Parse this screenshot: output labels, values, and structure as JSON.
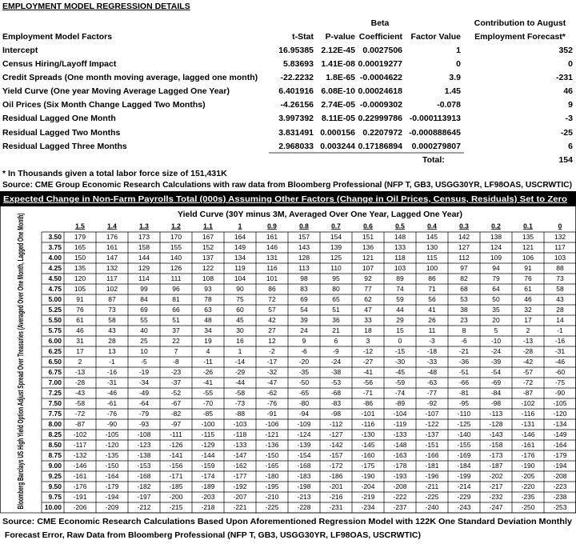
{
  "regression": {
    "title": "EMPLOYMENT MODEL REGRESSION DETAILS",
    "group_headers": {
      "beta": "Beta",
      "contribution": "Contribution to August"
    },
    "columns": [
      "Employment Model Factors",
      "t-Stat",
      "P-value",
      "Coefficient",
      "Factor Value",
      "Employment Forecast*"
    ],
    "rows": [
      [
        "Intercept",
        16.95385,
        "2.12E-45",
        0.0027506,
        1,
        352
      ],
      [
        "Census Hiring/Layoff Impact",
        5.83693,
        "1.41E-08",
        0.00019277,
        0,
        0
      ],
      [
        "Credit Spreads (One month moving average, lagged one month)",
        -22.2232,
        "1.8E-65",
        -0.0004622,
        3.9,
        -231
      ],
      [
        "Yield Curve (One year Moving Average Lagged One Year)",
        6.401916,
        "6.08E-10",
        0.00024618,
        1.45,
        46
      ],
      [
        "Oil Prices (Six Month Change Lagged Two Months)",
        -4.26156,
        "2.74E-05",
        -0.0009302,
        -0.078,
        9
      ],
      [
        "Residual Lagged One Month",
        3.997392,
        "8.11E-05",
        0.22999786,
        -0.000113913,
        -3
      ],
      [
        "Residual Lagged Two Months",
        3.831491,
        0.000156,
        0.2207972,
        -0.000888645,
        -25
      ],
      [
        "Residual Lagged Three Months",
        2.968033,
        0.003244,
        0.17186894,
        0.000279807,
        6
      ]
    ],
    "total_label": "Total:",
    "total": 154,
    "note": "* In Thousands given a total labor force size of 151,431K",
    "source": "Source: CME Group Economic Research Calculations with raw data from Bloomberg Professional (NFP T, GB3, USGG30YR, LF98OAS, USCRWTIC)"
  },
  "sensitivity": {
    "title": "Expected Change in Non-Farm Payrolls Total (000s) Assuming Other Factors (Change in Oil Prices, Census, Residuals) Set to Zero",
    "column_title": "Yield Curve (30Y minus 3M, Averaged Over One Year, Lagged One Year)",
    "row_title": "Bloomberg Barclays US High Yield Option Adjust Spread Over Treasuries (Averaged Over One Month, Lagged One Month)",
    "columns": [
      1.5,
      1.4,
      1.3,
      1.2,
      1.1,
      1,
      0.9,
      0.8,
      0.7,
      0.6,
      0.5,
      0.4,
      0.3,
      0.2,
      0.1,
      0
    ],
    "row_labels": [
      "3.50",
      "3.75",
      "4.00",
      "4.25",
      "4.50",
      "4.75",
      "5.00",
      "5.25",
      "5.50",
      "5.75",
      "6.00",
      "6.25",
      "6.50",
      "6.75",
      "7.00",
      "7.25",
      "7.50",
      "7.75",
      "8.00",
      "8.25",
      "8.50",
      "8.75",
      "9.00",
      "9.25",
      "9.50",
      "9.75",
      "10.00"
    ],
    "rows": [
      [
        179,
        176,
        173,
        170,
        167,
        164,
        161,
        157,
        154,
        151,
        148,
        145,
        142,
        138,
        135,
        132
      ],
      [
        165,
        161,
        158,
        155,
        152,
        149,
        146,
        143,
        139,
        136,
        133,
        130,
        127,
        124,
        121,
        117
      ],
      [
        150,
        147,
        144,
        140,
        137,
        134,
        131,
        128,
        125,
        121,
        118,
        115,
        112,
        109,
        106,
        103
      ],
      [
        135,
        132,
        129,
        126,
        122,
        119,
        116,
        113,
        110,
        107,
        103,
        100,
        97,
        94,
        91,
        88
      ],
      [
        120,
        117,
        114,
        111,
        108,
        104,
        101,
        98,
        95,
        92,
        89,
        86,
        82,
        79,
        76,
        73
      ],
      [
        105,
        102,
        99,
        96,
        93,
        90,
        86,
        83,
        80,
        77,
        74,
        71,
        68,
        64,
        61,
        58
      ],
      [
        91,
        87,
        84,
        81,
        78,
        75,
        72,
        69,
        65,
        62,
        59,
        56,
        53,
        50,
        46,
        43
      ],
      [
        76,
        73,
        69,
        66,
        63,
        60,
        57,
        54,
        51,
        47,
        44,
        41,
        38,
        35,
        32,
        28
      ],
      [
        61,
        58,
        55,
        51,
        48,
        45,
        42,
        39,
        36,
        33,
        29,
        26,
        23,
        20,
        17,
        14
      ],
      [
        46,
        43,
        40,
        37,
        34,
        30,
        27,
        24,
        21,
        18,
        15,
        11,
        8,
        5,
        2,
        -1
      ],
      [
        31,
        28,
        25,
        22,
        19,
        16,
        12,
        9,
        6,
        3,
        0,
        -3,
        -6,
        -10,
        -13,
        -16
      ],
      [
        17,
        13,
        10,
        7,
        4,
        1,
        -2,
        -6,
        -9,
        -12,
        -15,
        -18,
        -21,
        -24,
        -28,
        -31
      ],
      [
        2,
        -1,
        -5,
        -8,
        -11,
        -14,
        -17,
        -20,
        -24,
        -27,
        -30,
        -33,
        -36,
        -39,
        -42,
        -46
      ],
      [
        -13,
        -16,
        -19,
        -23,
        -26,
        -29,
        -32,
        -35,
        -38,
        -41,
        -45,
        -48,
        -51,
        -54,
        -57,
        -60
      ],
      [
        -28,
        -31,
        -34,
        -37,
        -41,
        -44,
        -47,
        -50,
        -53,
        -56,
        -59,
        -63,
        -66,
        -69,
        -72,
        -75
      ],
      [
        -43,
        -46,
        -49,
        -52,
        -55,
        -58,
        -62,
        -65,
        -68,
        -71,
        -74,
        -77,
        -81,
        -84,
        -87,
        -90
      ],
      [
        -58,
        -61,
        -64,
        -67,
        -70,
        -73,
        -76,
        -80,
        -83,
        -86,
        -89,
        -92,
        -95,
        -98,
        -102,
        -105
      ],
      [
        -72,
        -76,
        -79,
        -82,
        -85,
        -88,
        -91,
        -94,
        -98,
        -101,
        -104,
        -107,
        -110,
        -113,
        -116,
        -120
      ],
      [
        -87,
        -90,
        -93,
        -97,
        -100,
        -103,
        -106,
        -109,
        -112,
        -116,
        -119,
        -122,
        -125,
        -128,
        -131,
        -134
      ],
      [
        -102,
        -105,
        -108,
        -111,
        -115,
        -118,
        -121,
        -124,
        -127,
        -130,
        -133,
        -137,
        -140,
        -143,
        -146,
        -149
      ],
      [
        -117,
        -120,
        -123,
        -126,
        -129,
        -133,
        -136,
        -139,
        -142,
        -145,
        -148,
        -151,
        -155,
        -158,
        -161,
        -164
      ],
      [
        -132,
        -135,
        -138,
        -141,
        -144,
        -147,
        -150,
        -154,
        -157,
        -160,
        -163,
        -166,
        -169,
        -173,
        -176,
        -179
      ],
      [
        -146,
        -150,
        -153,
        -156,
        -159,
        -162,
        -165,
        -168,
        -172,
        -175,
        -178,
        -181,
        -184,
        -187,
        -190,
        -194
      ],
      [
        -161,
        -164,
        -168,
        -171,
        -174,
        -177,
        -180,
        -183,
        -186,
        -190,
        -193,
        -196,
        -199,
        -202,
        -205,
        -208
      ],
      [
        -176,
        -179,
        -182,
        -185,
        -189,
        -192,
        -195,
        -198,
        -201,
        -204,
        -208,
        -211,
        -214,
        -217,
        -220,
        -223
      ],
      [
        -191,
        -194,
        -197,
        -200,
        -203,
        -207,
        -210,
        -213,
        -216,
        -219,
        -222,
        -225,
        -229,
        -232,
        -235,
        -238
      ],
      [
        -206,
        -209,
        -212,
        -215,
        -218,
        -221,
        -225,
        -228,
        -231,
        -234,
        -237,
        -240,
        -243,
        -247,
        -250,
        -253
      ]
    ],
    "source": "Source: CME Economic Research Calculations Based Upon Aforementioned Regression Model with 122K One Standard Deviation Monthly Forecast Error, Raw Data from Bloomberg Professional (NFP T, GB3, USGG30YR, LF98OAS, USCRWTIC)"
  }
}
